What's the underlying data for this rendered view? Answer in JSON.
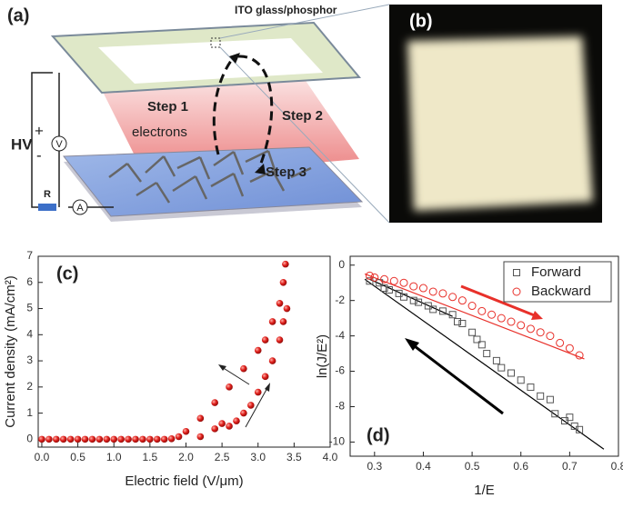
{
  "panels": {
    "a": {
      "label": "(a)",
      "top_plate": "ITO glass/phosphor",
      "step1": "Step 1",
      "step2": "Step 2",
      "step3": "Step 3",
      "electrons": "electrons",
      "hv": "HV",
      "plus": "+",
      "minus": "-",
      "voltmeter": "V",
      "resistor": "R",
      "ammeter": "A"
    },
    "b": {
      "label": "(b)"
    }
  },
  "chart_data": [
    {
      "type": "scatter",
      "panel_label": "(c)",
      "x_label": "Electric field (V/μm)",
      "y_label": "Current density (mA/cm²)",
      "color": "#e0201c",
      "marker": "sphere",
      "x": [
        0.0,
        0.1,
        0.2,
        0.3,
        0.4,
        0.5,
        0.6,
        0.7,
        0.8,
        0.9,
        1.0,
        1.1,
        1.2,
        1.3,
        1.4,
        1.5,
        1.6,
        1.7,
        1.8,
        1.9,
        2.0,
        2.2,
        2.4,
        2.6,
        2.8,
        3.0,
        3.1,
        3.2,
        3.3,
        3.35,
        3.38,
        2.2,
        2.4,
        2.5,
        2.6,
        2.7,
        2.8,
        2.9,
        3.0,
        3.1,
        3.2,
        3.3,
        3.35,
        3.4
      ],
      "values": [
        0,
        0,
        0,
        0,
        0,
        0,
        0,
        0,
        0,
        0,
        0,
        0,
        0,
        0,
        0,
        0,
        0,
        0,
        0.02,
        0.1,
        0.3,
        0.8,
        1.4,
        2.0,
        2.7,
        3.4,
        3.8,
        4.5,
        5.2,
        6.0,
        6.7,
        0.1,
        0.4,
        0.6,
        0.5,
        0.7,
        1.0,
        1.3,
        1.8,
        2.4,
        3.0,
        3.8,
        4.5,
        5.0
      ],
      "xlim": [
        -0.05,
        4.0
      ],
      "ylim": [
        -0.3,
        7
      ],
      "xticks": [
        {
          "value": 0,
          "label": "0.0"
        },
        {
          "value": 0.5,
          "label": "0.5"
        },
        {
          "value": 1,
          "label": "1.0"
        },
        {
          "value": 1.5,
          "label": "1.5"
        },
        {
          "value": 2,
          "label": "2.0"
        },
        {
          "value": 2.5,
          "label": "2.5"
        },
        {
          "value": 3,
          "label": "3.0"
        },
        {
          "value": 3.5,
          "label": "3.5"
        },
        {
          "value": 4,
          "label": "4.0"
        }
      ],
      "yticks": [
        0,
        1,
        2,
        3,
        4,
        5,
        6,
        7
      ]
    },
    {
      "type": "scatter",
      "panel_label": "(d)",
      "x_label": "1/E",
      "y_label": "ln(J/E²)",
      "legend": "top-right",
      "series": [
        {
          "name": "Forward",
          "color": "#555555",
          "marker": "square",
          "x": [
            0.29,
            0.31,
            0.32,
            0.33,
            0.35,
            0.36,
            0.38,
            0.39,
            0.41,
            0.42,
            0.44,
            0.46,
            0.47,
            0.48,
            0.5,
            0.51,
            0.52,
            0.53,
            0.55,
            0.56,
            0.58,
            0.6,
            0.62,
            0.64,
            0.66,
            0.67,
            0.69,
            0.7,
            0.71,
            0.72
          ],
          "values": [
            -0.9,
            -1.0,
            -1.3,
            -1.4,
            -1.6,
            -1.8,
            -2.0,
            -2.1,
            -2.3,
            -2.5,
            -2.6,
            -2.8,
            -3.2,
            -3.3,
            -3.8,
            -4.2,
            -4.5,
            -5.0,
            -5.4,
            -5.8,
            -6.1,
            -6.5,
            -6.9,
            -7.4,
            -7.6,
            -8.4,
            -8.8,
            -8.6,
            -9.1,
            -9.3
          ]
        },
        {
          "name": "Backward",
          "color": "#e8302a",
          "marker": "circle",
          "x": [
            0.29,
            0.3,
            0.32,
            0.34,
            0.36,
            0.38,
            0.4,
            0.42,
            0.44,
            0.46,
            0.48,
            0.5,
            0.52,
            0.54,
            0.56,
            0.58,
            0.6,
            0.62,
            0.64,
            0.66,
            0.68,
            0.7,
            0.72
          ],
          "values": [
            -0.6,
            -0.7,
            -0.8,
            -0.9,
            -1.0,
            -1.2,
            -1.3,
            -1.5,
            -1.6,
            -1.8,
            -2.0,
            -2.3,
            -2.6,
            -2.8,
            -3.0,
            -3.2,
            -3.4,
            -3.6,
            -3.8,
            -4.0,
            -4.4,
            -4.7,
            -5.1
          ]
        }
      ],
      "fit_lines": [
        {
          "color": "#000000",
          "x": [
            0.28,
            0.77
          ],
          "values": [
            -0.8,
            -10.4
          ]
        },
        {
          "color": "#000000",
          "x": [
            0.29,
            0.46
          ],
          "values": [
            -0.8,
            -2.9
          ]
        },
        {
          "color": "#e8302a",
          "x": [
            0.28,
            0.73
          ],
          "values": [
            -0.5,
            -5.3
          ]
        }
      ],
      "xlim": [
        0.25,
        0.8
      ],
      "ylim": [
        -10.8,
        0.5
      ],
      "xticks": [
        0.3,
        0.4,
        0.5,
        0.6,
        0.7,
        0.8
      ],
      "yticks": [
        0,
        -2,
        -4,
        -6,
        -8,
        -10
      ]
    }
  ]
}
